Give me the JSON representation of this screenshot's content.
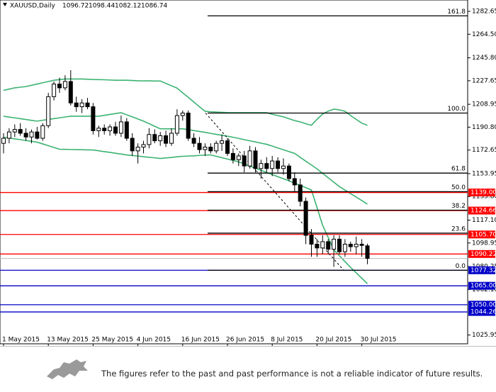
{
  "chart_data": {
    "type": "candlestick",
    "title": "XAUUSD,Daily",
    "categories": [
      "1 May 2015",
      null,
      null,
      null,
      null,
      null,
      null,
      null,
      "13 May 2015",
      null,
      null,
      null,
      null,
      null,
      null,
      null,
      "25 May 2015",
      null,
      null,
      null,
      null,
      null,
      null,
      null,
      "4 Jun 2015",
      null,
      null,
      null,
      null,
      null,
      null,
      null,
      "16 Jun 2015",
      null,
      null,
      null,
      null,
      null,
      null,
      null,
      "26 Jun 2015",
      null,
      null,
      null,
      null,
      null,
      null,
      null,
      "8 Jul 2015",
      null,
      null,
      null,
      null,
      null,
      null,
      null,
      "20 Jul 2015",
      null,
      null,
      null,
      null,
      null,
      null,
      null,
      "30 Jul 2015",
      null
    ],
    "open": [
      1178,
      1182,
      1187,
      1189,
      1186,
      1183,
      1187,
      1182,
      1192,
      1215,
      1225,
      1222,
      1227,
      1210,
      1207,
      1210,
      1207,
      1188,
      1190,
      1188,
      1191,
      1186,
      1195,
      1182,
      1172,
      1175,
      1177,
      1185,
      1180,
      1184,
      1178,
      1186,
      1200,
      1202,
      1182,
      1178,
      1173,
      1175,
      1172,
      1178,
      1180,
      1170,
      1165,
      1168,
      1160,
      1172,
      1158,
      1162,
      1158,
      1164,
      1158,
      1160,
      1150,
      1145,
      1132,
      1105,
      1098,
      1095,
      1100,
      1094,
      1102,
      1092,
      1098,
      1096,
      1098,
      1096.72
    ],
    "high": [
      1186,
      1190,
      1193,
      1194,
      1190,
      1189,
      1191,
      1194,
      1218,
      1227,
      1230,
      1232,
      1236,
      1215,
      1213,
      1214,
      1210,
      1192,
      1193,
      1193,
      1195,
      1200,
      1198,
      1186,
      1178,
      1180,
      1190,
      1189,
      1187,
      1188,
      1190,
      1205,
      1204,
      1204,
      1186,
      1183,
      1178,
      1178,
      1180,
      1185,
      1182,
      1174,
      1170,
      1172,
      1176,
      1175,
      1165,
      1167,
      1168,
      1167,
      1166,
      1162,
      1155,
      1150,
      1135,
      1110,
      1102,
      1105,
      1102,
      1105,
      1105,
      1102,
      1100,
      1104,
      1102,
      1098.44
    ],
    "low": [
      1170,
      1178,
      1183,
      1184,
      1180,
      1178,
      1181,
      1180,
      1190,
      1212,
      1218,
      1220,
      1208,
      1203,
      1202,
      1205,
      1185,
      1183,
      1185,
      1184,
      1184,
      1183,
      1180,
      1168,
      1162,
      1170,
      1174,
      1178,
      1176,
      1175,
      1176,
      1184,
      1196,
      1180,
      1175,
      1170,
      1168,
      1170,
      1170,
      1172,
      1168,
      1162,
      1160,
      1155,
      1158,
      1155,
      1150,
      1155,
      1152,
      1155,
      1153,
      1148,
      1140,
      1128,
      1098,
      1088,
      1088,
      1090,
      1090,
      1080,
      1090,
      1088,
      1092,
      1090,
      1088,
      1082.12
    ],
    "close": [
      1182,
      1187,
      1189,
      1186,
      1183,
      1187,
      1182,
      1192,
      1215,
      1225,
      1222,
      1227,
      1210,
      1207,
      1210,
      1207,
      1188,
      1190,
      1188,
      1191,
      1186,
      1195,
      1182,
      1172,
      1175,
      1177,
      1185,
      1180,
      1184,
      1178,
      1186,
      1200,
      1202,
      1182,
      1178,
      1173,
      1175,
      1172,
      1178,
      1180,
      1170,
      1165,
      1168,
      1160,
      1172,
      1158,
      1162,
      1158,
      1164,
      1158,
      1160,
      1150,
      1145,
      1132,
      1105,
      1098,
      1095,
      1100,
      1094,
      1102,
      1092,
      1098,
      1096,
      1098,
      1097,
      1086.74
    ],
    "bands": {
      "color": "#3cb371",
      "upper": [
        1220,
        1221,
        1222,
        1222.5,
        1223,
        1224,
        1225,
        1226,
        1227,
        1228,
        1228.5,
        1229,
        1229,
        1229,
        1229,
        1228.8,
        1228.6,
        1228.5,
        1228.4,
        1228.2,
        1228,
        1228,
        1228,
        1227.8,
        1227.6,
        1227.5,
        1227.5,
        1227.4,
        1227.4,
        1225.5,
        1223.6,
        1221.8,
        1218,
        1214.5,
        1210.7,
        1207,
        1203.4,
        1203,
        1202.8,
        1202.6,
        1202.4,
        1202.3,
        1202.3,
        1202.3,
        1202.3,
        1202.3,
        1202.3,
        1202.3,
        1201,
        1200,
        1199,
        1197.5,
        1196,
        1195,
        1193.5,
        1192.3,
        1197,
        1201.2,
        1203.5,
        1205.1,
        1204.5,
        1203.4,
        1200,
        1197,
        1194,
        1192.3
      ],
      "middle": [
        1199.5,
        1198.8,
        1198.2,
        1197.5,
        1196.9,
        1196.2,
        1195.6,
        1196.3,
        1196.9,
        1197.6,
        1198.2,
        1198.9,
        1199.5,
        1199.5,
        1199.5,
        1199.5,
        1199.5,
        1199.5,
        1200.2,
        1200.9,
        1201.6,
        1202.3,
        1200.6,
        1199,
        1197.3,
        1195.6,
        1193.6,
        1191.5,
        1189.5,
        1189.5,
        1189.5,
        1189.5,
        1189.5,
        1188.8,
        1188.1,
        1187.4,
        1186.7,
        1185.9,
        1185.1,
        1184.4,
        1183.6,
        1182.8,
        1181.9,
        1180.9,
        1180,
        1179.1,
        1178.1,
        1177.2,
        1175.8,
        1174.3,
        1172.9,
        1171.4,
        1170,
        1166.9,
        1163.8,
        1160.8,
        1157.7,
        1154.2,
        1150.7,
        1147.2,
        1143.7,
        1140.9,
        1138.1,
        1135.4,
        1132.6,
        1129.8
      ],
      "lower": [
        1182.8,
        1182.2,
        1181.5,
        1180.9,
        1180.2,
        1179.6,
        1178.9,
        1177.5,
        1176.1,
        1174.7,
        1173.3,
        1173.2,
        1173.1,
        1173,
        1172.9,
        1172.8,
        1172.7,
        1172.1,
        1171.4,
        1170.8,
        1170.1,
        1169.5,
        1168.8,
        1168.3,
        1167.9,
        1167.4,
        1166.9,
        1166.5,
        1166,
        1166.4,
        1166.8,
        1167.3,
        1167.7,
        1167.9,
        1168.1,
        1168.4,
        1168.6,
        1168.8,
        1167.7,
        1166.6,
        1165.5,
        1164.4,
        1163.3,
        1161.6,
        1159.9,
        1158.3,
        1156.6,
        1154.9,
        1153.2,
        1151.5,
        1149.9,
        1148.2,
        1146.5,
        1144.7,
        1142.8,
        1141,
        1127,
        1113,
        1103.3,
        1093.5,
        1088.9,
        1084.2,
        1079.6,
        1075.3,
        1071,
        1066.7
      ]
    },
    "ylim": [
      1019,
      1291.65
    ],
    "yticks": [
      1282.65,
      {
        "value": 1264.5,
        "label": "1264.50"
      },
      {
        "value": 1245.8,
        "label": "1245.80"
      },
      1227.65,
      1208.95,
      {
        "value": 1190.8,
        "label": "1190.80"
      },
      1172.65,
      1153.95,
      {
        "value": 1135.8,
        "label": "1135.80"
      },
      {
        "value": 1117.1,
        "label": "1117.10"
      },
      1098.95,
      1080.25,
      {
        "value": 1062.1,
        "label": "1062.10"
      },
      1025.95
    ],
    "levels": [
      {
        "value": 1139,
        "label": "1139.00",
        "color": "#ff0000"
      },
      {
        "value": 1124.66,
        "label": "1124.66",
        "color": "#ff0000"
      },
      {
        "value": 1105.7,
        "label": "1105.70",
        "color": "#ff0000"
      },
      {
        "value": 1090.22,
        "label": "1090.22",
        "color": "#ff0000"
      },
      {
        "value": 1077.32,
        "label": "1077.32",
        "color": "#0000c8"
      },
      {
        "value": 1065,
        "label": "1065.00",
        "color": "#0000c8"
      },
      {
        "value": 1050,
        "label": "1050.00",
        "color": "#0000c8"
      },
      {
        "value": 1044.26,
        "label": "1044.26",
        "color": "#0000c8"
      }
    ],
    "fibonacci": {
      "price_0": 1077.32,
      "price_100": 1202.0,
      "levels": [
        161.8,
        {
          "value": 100,
          "label": "100.0"
        },
        61.8,
        {
          "value": 50,
          "label": "50.0"
        },
        38.2,
        23.6,
        {
          "value": 0,
          "label": "0.0"
        }
      ]
    }
  },
  "footer": {
    "disclaimer": "The figures refer to the past and past performance is not a reliable indicator of future results."
  }
}
